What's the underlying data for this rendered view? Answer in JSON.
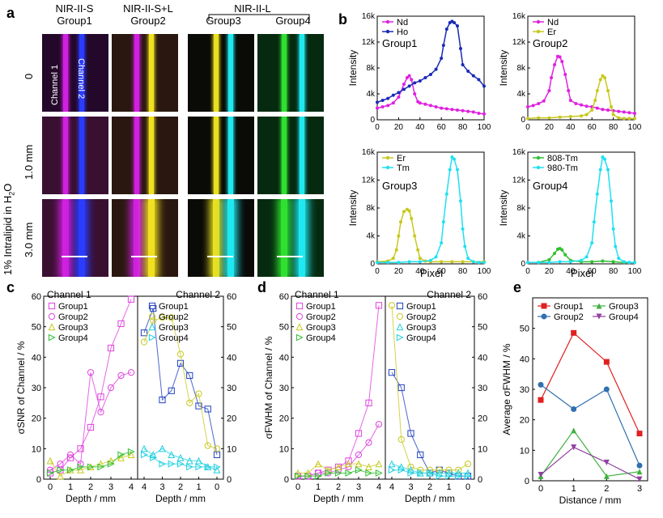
{
  "panel_a": {
    "letter": "a",
    "col_headers": [
      [
        "NIR-II-S",
        "Group1"
      ],
      [
        "NIR-II-S+L",
        "Group2"
      ],
      [
        "",
        ""
      ],
      [
        "",
        ""
      ]
    ],
    "group3": "Group3",
    "group4": "Group4",
    "bracket_label": "NIR-II-L",
    "row_labels": [
      "0",
      "1.0 mm",
      "3.0 mm"
    ],
    "side_label_a": "1% Intralipid in H",
    "side_label_sub": "2",
    "side_label_b": "O",
    "channel1": "Channel 1",
    "channel2": "Channel 2",
    "stripe_colors": [
      [
        "#d020e0",
        "#2a3cff"
      ],
      [
        "#d020e0",
        "#f0e020"
      ],
      [
        "#e8e020",
        "#20e8f0"
      ],
      [
        "#30e030",
        "#20e8f0"
      ]
    ],
    "cell_bg": [
      "#3a1030",
      "#2a1810",
      "#0a0a06",
      "#062a10"
    ]
  },
  "panel_b": {
    "letter": "b",
    "ylabel": "Intensity",
    "xlabel": "Pixel",
    "xticks": [
      "0",
      "20",
      "40",
      "60",
      "80",
      "100"
    ],
    "yticks": [
      "0",
      "4k",
      "8k",
      "12k",
      "16k"
    ]
  },
  "panel_c": {
    "letter": "c",
    "ylabel": "σSNR of Channel / %",
    "xlabel": "Depth / mm",
    "ch1": "Channel 1",
    "ch2": "Channel 2"
  },
  "panel_d": {
    "letter": "d",
    "ylabel": "σFWHM of Channel / %",
    "xlabel": "Depth / mm",
    "ch1": "Channel 1",
    "ch2": "Channel 2"
  },
  "panel_e": {
    "letter": "e",
    "ylabel": "Average σFWHM / %",
    "xlabel": "Distance / mm"
  },
  "chart_data": [
    {
      "type": "line",
      "panel": "b",
      "group": "Group1",
      "ylim": [
        0,
        16000
      ],
      "xlim": [
        0,
        100
      ],
      "colors": [
        "#e020e0",
        "#1a2ab8"
      ],
      "series": [
        {
          "name": "Nd",
          "x": [
            0,
            5,
            10,
            15,
            20,
            25,
            28,
            30,
            32,
            35,
            38,
            40,
            45,
            50,
            55,
            60,
            65,
            70,
            75,
            80,
            85,
            90,
            95,
            100
          ],
          "y": [
            1800,
            2000,
            2200,
            2600,
            3500,
            5500,
            6500,
            6800,
            6200,
            4000,
            2800,
            2600,
            2400,
            2200,
            2000,
            1800,
            1700,
            1600,
            1500,
            1400,
            1300,
            1200,
            1000,
            900
          ]
        },
        {
          "name": "Ho",
          "x": [
            0,
            5,
            10,
            15,
            20,
            25,
            30,
            35,
            40,
            45,
            50,
            55,
            60,
            62,
            65,
            68,
            70,
            72,
            75,
            78,
            80,
            85,
            90,
            95,
            100
          ],
          "y": [
            2700,
            3000,
            3300,
            3800,
            4200,
            4700,
            5200,
            5700,
            6000,
            6500,
            7000,
            7800,
            9500,
            11500,
            14000,
            15000,
            15200,
            15000,
            14500,
            11000,
            8500,
            7500,
            6800,
            6200,
            5200
          ]
        }
      ]
    },
    {
      "type": "line",
      "panel": "b",
      "group": "Group2",
      "ylim": [
        0,
        16000
      ],
      "xlim": [
        0,
        100
      ],
      "colors": [
        "#e020e0",
        "#c8c820"
      ],
      "series": [
        {
          "name": "Nd",
          "x": [
            0,
            5,
            10,
            15,
            20,
            22,
            25,
            28,
            30,
            32,
            35,
            38,
            40,
            45,
            50,
            55,
            60,
            65,
            70,
            75,
            80,
            85,
            90,
            95,
            100
          ],
          "y": [
            2000,
            2200,
            2500,
            2900,
            4500,
            6500,
            8500,
            9800,
            9700,
            9000,
            7000,
            4500,
            3000,
            2500,
            2300,
            2100,
            2000,
            1800,
            1600,
            1500,
            1400,
            1300,
            1200,
            1100,
            1000
          ]
        },
        {
          "name": "Er",
          "x": [
            0,
            10,
            20,
            30,
            40,
            50,
            55,
            60,
            63,
            65,
            68,
            70,
            72,
            75,
            78,
            80,
            85,
            90,
            95,
            100
          ],
          "y": [
            200,
            300,
            300,
            400,
            500,
            600,
            800,
            1500,
            3000,
            4500,
            6200,
            6800,
            6500,
            4500,
            2000,
            800,
            300,
            200,
            200,
            200
          ]
        }
      ]
    },
    {
      "type": "line",
      "panel": "b",
      "group": "Group3",
      "ylim": [
        0,
        16000
      ],
      "xlim": [
        0,
        100
      ],
      "colors": [
        "#c8c820",
        "#20e0f0"
      ],
      "series": [
        {
          "name": "Er",
          "x": [
            0,
            10,
            15,
            18,
            20,
            22,
            25,
            28,
            30,
            32,
            35,
            38,
            40,
            45,
            50,
            60,
            70,
            80,
            90,
            100
          ],
          "y": [
            300,
            400,
            800,
            2000,
            4000,
            6000,
            7500,
            7800,
            7600,
            6500,
            4000,
            2000,
            800,
            400,
            300,
            300,
            300,
            300,
            300,
            300
          ]
        },
        {
          "name": "Tm",
          "x": [
            0,
            10,
            20,
            30,
            40,
            50,
            55,
            60,
            62,
            65,
            68,
            70,
            72,
            75,
            78,
            80,
            82,
            85,
            90,
            95,
            100
          ],
          "y": [
            200,
            200,
            200,
            300,
            300,
            500,
            1000,
            3000,
            6000,
            10000,
            13500,
            15300,
            15000,
            13500,
            9000,
            5000,
            2500,
            800,
            300,
            200,
            200
          ]
        }
      ]
    },
    {
      "type": "line",
      "panel": "b",
      "group": "Group4",
      "ylim": [
        0,
        16000
      ],
      "xlim": [
        0,
        100
      ],
      "colors": [
        "#30c030",
        "#20e0f0"
      ],
      "series": [
        {
          "name": "808-Tm",
          "x": [
            0,
            10,
            20,
            25,
            28,
            30,
            32,
            35,
            40,
            50,
            60,
            70,
            80,
            90,
            100
          ],
          "y": [
            200,
            200,
            600,
            1500,
            2100,
            2200,
            2000,
            1300,
            500,
            300,
            300,
            400,
            300,
            200,
            200
          ]
        },
        {
          "name": "980-Tm",
          "x": [
            0,
            10,
            20,
            30,
            40,
            50,
            55,
            60,
            62,
            65,
            68,
            70,
            72,
            75,
            78,
            80,
            82,
            85,
            90,
            95,
            100
          ],
          "y": [
            200,
            200,
            200,
            300,
            300,
            500,
            1000,
            3000,
            6000,
            10000,
            13500,
            15300,
            15000,
            13500,
            9000,
            5000,
            2500,
            800,
            300,
            200,
            200
          ]
        }
      ]
    },
    {
      "type": "scatter",
      "panel": "c",
      "xlim": [
        0,
        4
      ],
      "ylim": [
        0,
        60
      ],
      "legend_ch1": [
        "Group1",
        "Group2",
        "Group3",
        "Group4"
      ],
      "legend_ch2": [
        "Group1",
        "Group2",
        "Group3",
        "Group4"
      ],
      "ch1_series": [
        {
          "name": "Group1",
          "color": "#e040e0",
          "x": [
            0,
            0.5,
            1,
            1.5,
            2,
            2.5,
            3,
            3.5,
            4
          ],
          "y": [
            2,
            3,
            7,
            10,
            17,
            27,
            43,
            51,
            59
          ]
        },
        {
          "name": "Group2",
          "color": "#e040e0",
          "x": [
            0,
            0.5,
            1,
            1.5,
            2,
            2.5,
            3,
            3.5,
            4
          ],
          "y": [
            3,
            5,
            8,
            5,
            35,
            22,
            30,
            34,
            35
          ]
        },
        {
          "name": "Group3",
          "color": "#c8c820",
          "x": [
            0,
            0.5,
            1,
            1.5,
            2,
            2.5,
            3,
            3.5,
            4
          ],
          "y": [
            6,
            1,
            3,
            3,
            4,
            5,
            6,
            7,
            8
          ]
        },
        {
          "name": "Group4",
          "color": "#30c030",
          "x": [
            0,
            0.5,
            1,
            1.5,
            2,
            2.5,
            3,
            3.5,
            4
          ],
          "y": [
            2,
            3,
            3,
            4,
            4,
            4,
            5,
            8,
            9
          ]
        }
      ],
      "ch2_series": [
        {
          "name": "Group1",
          "color": "#2040c0",
          "x": [
            4,
            3.5,
            3,
            2.5,
            2,
            1.5,
            1,
            0.5,
            0
          ],
          "y": [
            48,
            56,
            26,
            29,
            38,
            34,
            24,
            23,
            8
          ]
        },
        {
          "name": "Group2",
          "color": "#c8c820",
          "x": [
            4,
            3.5,
            3,
            2.5,
            2,
            1.5,
            1,
            0.5,
            0
          ],
          "y": [
            45,
            52,
            53,
            53,
            41,
            25,
            28,
            11,
            10
          ]
        },
        {
          "name": "Group3",
          "color": "#20d0e0",
          "x": [
            4,
            3.5,
            3,
            2.5,
            2,
            1.5,
            1,
            0.5,
            0
          ],
          "y": [
            10,
            8,
            10,
            8,
            7,
            6,
            6,
            4,
            3
          ]
        },
        {
          "name": "Group4",
          "color": "#20d0e0",
          "x": [
            4,
            3.5,
            3,
            2.5,
            2,
            1.5,
            1,
            0.5,
            0
          ],
          "y": [
            8,
            7,
            5,
            5,
            5,
            4,
            4,
            4,
            4
          ]
        }
      ]
    },
    {
      "type": "scatter",
      "panel": "d",
      "xlim": [
        0,
        4
      ],
      "ylim": [
        0,
        60
      ],
      "legend_ch1": [
        "Group1",
        "Group2",
        "Group3",
        "Group4"
      ],
      "legend_ch2": [
        "Group1",
        "Group2",
        "Group3",
        "Group4"
      ],
      "ch1_series": [
        {
          "name": "Group1",
          "color": "#e040e0",
          "x": [
            0,
            0.5,
            1,
            1.5,
            2,
            2.5,
            3,
            3.5,
            4
          ],
          "y": [
            1,
            1,
            2,
            3,
            4,
            6,
            15,
            25,
            57
          ]
        },
        {
          "name": "Group2",
          "color": "#e040e0",
          "x": [
            0,
            0.5,
            1,
            1.5,
            2,
            2.5,
            3,
            3.5,
            4
          ],
          "y": [
            1,
            1,
            2,
            2,
            3,
            4,
            8,
            12,
            18
          ]
        },
        {
          "name": "Group3",
          "color": "#c8c820",
          "x": [
            0,
            0.5,
            1,
            1.5,
            2,
            2.5,
            3,
            3.5,
            4
          ],
          "y": [
            2,
            2,
            5,
            3,
            4,
            5,
            5,
            4,
            5
          ]
        },
        {
          "name": "Group4",
          "color": "#30c030",
          "x": [
            0,
            0.5,
            1,
            1.5,
            2,
            2.5,
            3,
            3.5,
            4
          ],
          "y": [
            1,
            1,
            1,
            2,
            2,
            2,
            3,
            2,
            2
          ]
        }
      ],
      "ch2_series": [
        {
          "name": "Group1",
          "color": "#2040c0",
          "x": [
            4,
            3.5,
            3,
            2.5,
            2,
            1.5,
            1,
            0.5,
            0
          ],
          "y": [
            35,
            30,
            15,
            8,
            2,
            3,
            2,
            1,
            1
          ]
        },
        {
          "name": "Group2",
          "color": "#c8c820",
          "x": [
            4,
            3.5,
            3,
            2.5,
            2,
            1.5,
            1,
            0.5,
            0
          ],
          "y": [
            57,
            13,
            4,
            3,
            3,
            3,
            3,
            3,
            5
          ]
        },
        {
          "name": "Group3",
          "color": "#20d0e0",
          "x": [
            4,
            3.5,
            3,
            2.5,
            2,
            1.5,
            1,
            0.5,
            0
          ],
          "y": [
            5,
            4,
            3,
            2,
            2,
            2,
            2,
            2,
            2
          ]
        },
        {
          "name": "Group4",
          "color": "#20d0e0",
          "x": [
            4,
            3.5,
            3,
            2.5,
            2,
            1.5,
            1,
            0.5,
            0
          ],
          "y": [
            3,
            3,
            2,
            2,
            2,
            1,
            1,
            1,
            1
          ]
        }
      ]
    },
    {
      "type": "line",
      "panel": "e",
      "x": [
        0,
        1,
        2,
        3
      ],
      "xlim": [
        0,
        3
      ],
      "ylim": [
        0,
        60
      ],
      "series": [
        {
          "name": "Group1",
          "color": "#e02020",
          "marker": "square",
          "values": [
            26.5,
            48.5,
            39,
            15.5
          ]
        },
        {
          "name": "Group2",
          "color": "#3070b0",
          "marker": "circle",
          "values": [
            31.5,
            23.5,
            30,
            5
          ]
        },
        {
          "name": "Group3",
          "color": "#40b040",
          "marker": "triangle",
          "values": [
            1.5,
            16.5,
            1.5,
            3
          ]
        },
        {
          "name": "Group4",
          "color": "#9040a0",
          "marker": "triangle-down",
          "values": [
            2,
            11,
            6,
            0.5
          ]
        }
      ]
    }
  ]
}
